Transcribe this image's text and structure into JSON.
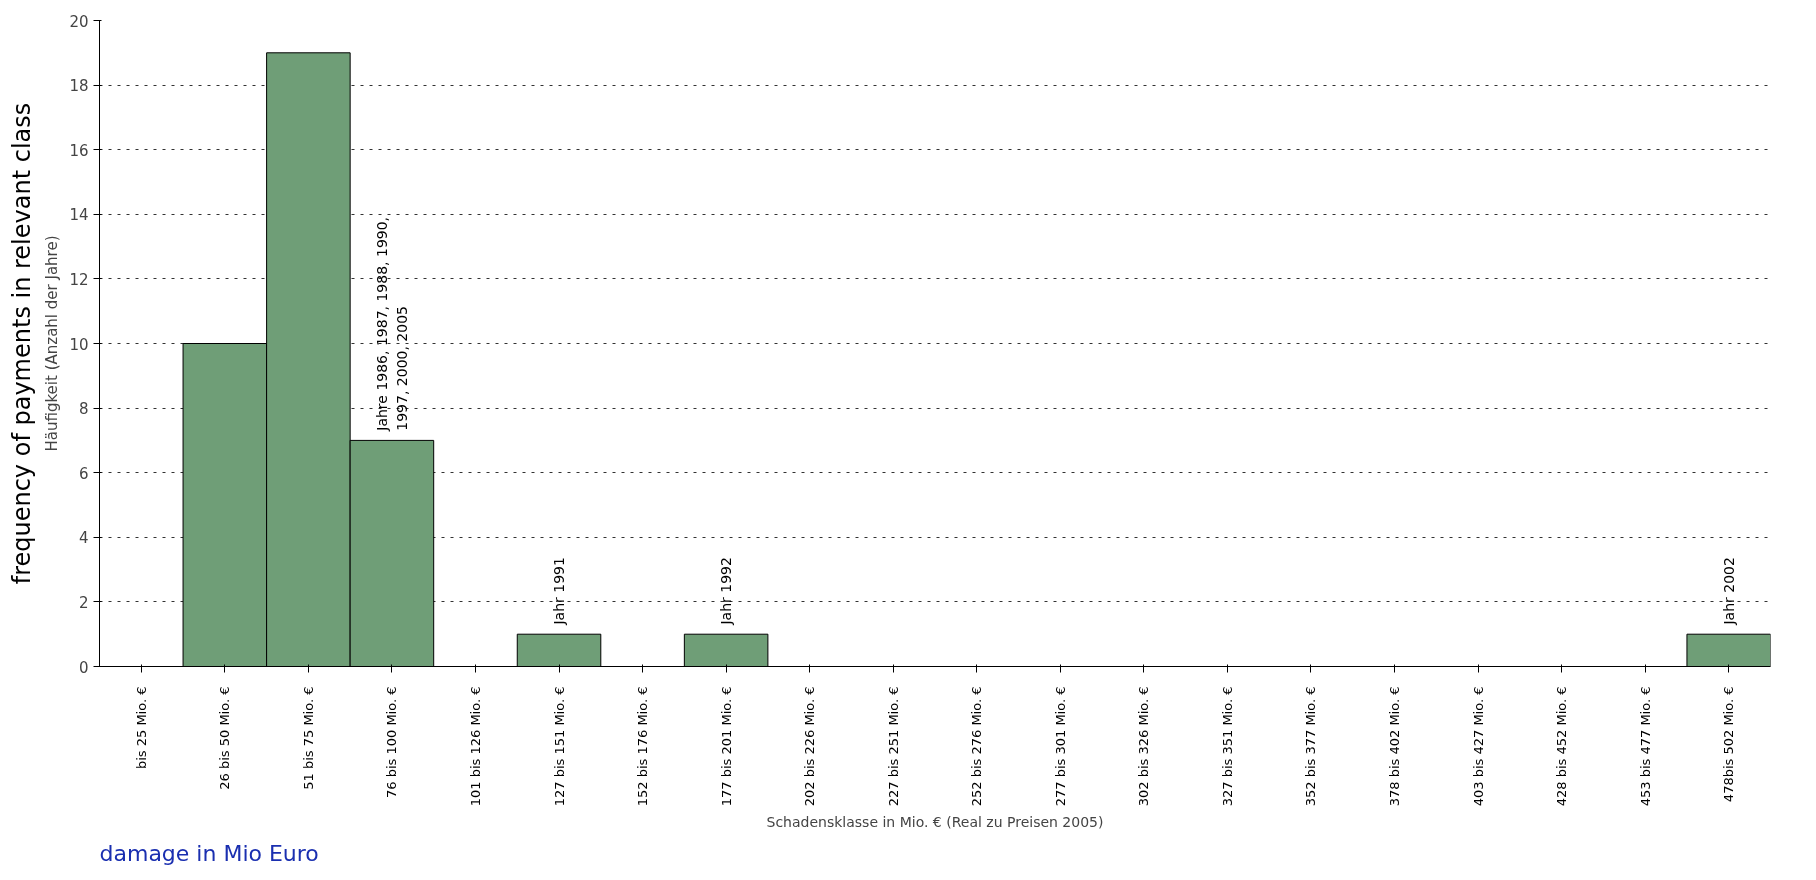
{
  "chart_data": {
    "type": "bar",
    "xlabel": "Schadensklasse in Mio. € (Real zu Preisen 2005)",
    "ylabel": "Häufigkeit (Anzahl der Jahre)",
    "categories": [
      "bis 25 Mio. €",
      "26 bis 50 Mio. €",
      "51 bis 75 Mio. €",
      "76 bis 100 Mio. €",
      "101 bis 126 Mio. €",
      "127 bis 151 Mio. €",
      "152 bis 176 Mio. €",
      "177 bis 201 Mio. €",
      "202 bis 226 Mio. €",
      "227 bis 251 Mio. €",
      "252 bis 276 Mio. €",
      "277 bis 301 Mio. €",
      "302 bis 326 Mio. €",
      "327 bis 351 Mio. €",
      "352 bis 377 Mio. €",
      "378 bis 402 Mio. €",
      "403 bis 427 Mio. €",
      "428 bis 452 Mio. €",
      "453 bis 477 Mio. €",
      "478bis 502 Mio. €"
    ],
    "values": [
      0,
      10,
      19,
      7,
      0,
      1,
      0,
      1,
      0,
      0,
      0,
      0,
      0,
      0,
      0,
      0,
      0,
      0,
      0,
      1
    ],
    "color": "#6f9e77",
    "ylim": [
      0,
      20
    ],
    "yticks": [
      0,
      2,
      4,
      6,
      8,
      10,
      12,
      14,
      16,
      18,
      20
    ],
    "grid": "y",
    "annotations": [
      {
        "text": "Jahre 1986, 1987, 1988, 1990,\n1997, 2000, 2005",
        "x": "76 bis 100 Mio. €",
        "y": 7
      },
      {
        "text": "Jahr  1991",
        "x": "127 bis 151 Mio. €",
        "y": 1
      },
      {
        "text": "Jahr  1992",
        "x": "177 bis 201 Mio. €",
        "y": 1
      },
      {
        "text": "Jahr  2002",
        "x": "478bis 502 Mio. €",
        "y": 1
      },
      "frequency of payments in relevant class",
      "damage in Mio Euro"
    ]
  }
}
